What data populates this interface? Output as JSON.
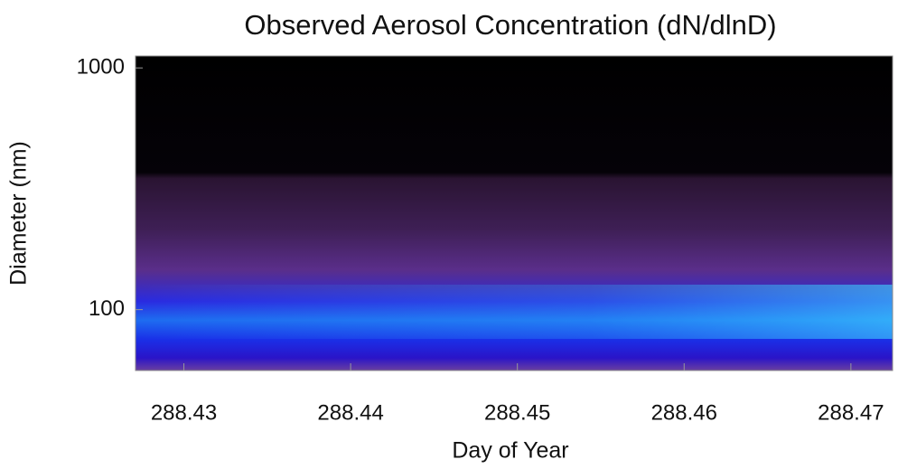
{
  "chart_data": {
    "type": "heatmap",
    "title": "Observed Aerosol Concentration (dN/dlnD)",
    "x_label": "Day of Year",
    "y_label": "Diameter (nm)",
    "xlim": [
      288.4271,
      288.4725
    ],
    "xticks": [
      288.43,
      288.44,
      288.45,
      288.46,
      288.47
    ],
    "ylim": [
      56,
      1120
    ],
    "yticks": [
      100,
      1000
    ],
    "y_scale": "log",
    "grid": false
  }
}
